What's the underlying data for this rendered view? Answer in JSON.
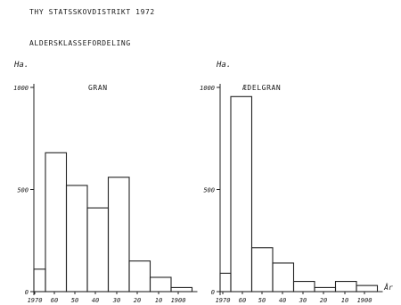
{
  "document": {
    "title": "THY STATSSKOVDISTRIKT 1972",
    "subtitle": "ALDERSKLASSEFORDELING"
  },
  "chart_data": [
    {
      "type": "bar",
      "title": "GRAN",
      "ylabel": "Ha.",
      "xlabel": "",
      "yticks": [
        "0",
        "500",
        "1000"
      ],
      "ylim": [
        0,
        1000
      ],
      "categories": [
        "",
        "1970",
        "60",
        "50",
        "40",
        "30",
        "20",
        "10",
        "1900"
      ],
      "values": [
        110,
        680,
        520,
        410,
        560,
        150,
        70,
        20,
        0
      ],
      "grid": false
    },
    {
      "type": "bar",
      "title": "ÆDELGRAN",
      "ylabel": "Ha.",
      "xlabel": "År",
      "yticks": [
        "0",
        "500",
        "1000"
      ],
      "ylim": [
        0,
        1000
      ],
      "categories": [
        "",
        "1970",
        "60",
        "50",
        "40",
        "30",
        "20",
        "10",
        "1900"
      ],
      "values": [
        90,
        955,
        215,
        140,
        50,
        20,
        50,
        30,
        0
      ],
      "grid": false
    }
  ]
}
